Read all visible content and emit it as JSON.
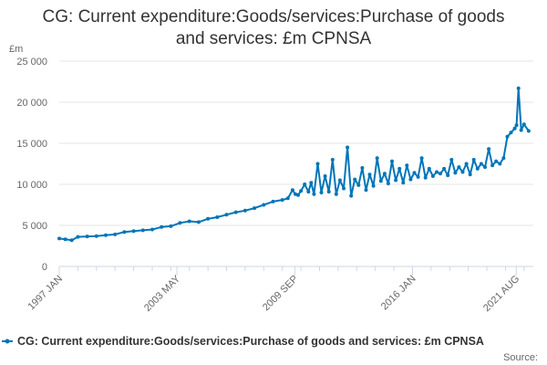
{
  "chart_data": {
    "type": "line",
    "title_lines": [
      "CG: Current expenditure:Goods/services:Purchase of goods",
      "and services: £m CPNSA"
    ],
    "ylabel": "£m",
    "ylim": [
      0,
      25000
    ],
    "yticks": [
      {
        "value": 0,
        "label": "0"
      },
      {
        "value": 5000,
        "label": "5 000"
      },
      {
        "value": 10000,
        "label": "10 000"
      },
      {
        "value": 15000,
        "label": "15 000"
      },
      {
        "value": 20000,
        "label": "20 000"
      },
      {
        "value": 25000,
        "label": "25 000"
      }
    ],
    "xlim": [
      1997.0,
      2022.5
    ],
    "xticks": [
      {
        "value": 1997.0,
        "label": "1997 JAN"
      },
      {
        "value": 2003.33,
        "label": "2003 MAY"
      },
      {
        "value": 2009.67,
        "label": "2009 SEP"
      },
      {
        "value": 2016.0,
        "label": "2016 JAN"
      },
      {
        "value": 2021.58,
        "label": "2021 AUG"
      }
    ],
    "grid": true,
    "series": [
      {
        "name": "CG: Current expenditure:Goods/services:Purchase of goods and services: £m CPNSA",
        "color": "#0075b8",
        "x": [
          1997.0,
          1997.33,
          1997.67,
          1998.0,
          1998.5,
          1999.0,
          1999.5,
          2000.0,
          2000.5,
          2001.0,
          2001.5,
          2002.0,
          2002.5,
          2003.0,
          2003.5,
          2004.0,
          2004.5,
          2005.0,
          2005.5,
          2006.0,
          2006.5,
          2007.0,
          2007.5,
          2008.0,
          2008.5,
          2009.0,
          2009.3,
          2009.55,
          2009.7,
          2009.85,
          2010.0,
          2010.2,
          2010.4,
          2010.55,
          2010.7,
          2010.9,
          2011.1,
          2011.3,
          2011.5,
          2011.7,
          2011.9,
          2012.1,
          2012.3,
          2012.5,
          2012.7,
          2012.9,
          2013.1,
          2013.3,
          2013.5,
          2013.7,
          2013.9,
          2014.1,
          2014.3,
          2014.5,
          2014.7,
          2014.9,
          2015.1,
          2015.3,
          2015.5,
          2015.7,
          2015.9,
          2016.1,
          2016.3,
          2016.5,
          2016.7,
          2016.9,
          2017.1,
          2017.3,
          2017.5,
          2017.7,
          2017.9,
          2018.1,
          2018.3,
          2018.5,
          2018.7,
          2018.9,
          2019.1,
          2019.3,
          2019.5,
          2019.7,
          2019.9,
          2020.1,
          2020.3,
          2020.5,
          2020.7,
          2020.9,
          2021.1,
          2021.3,
          2021.5,
          2021.6,
          2021.7,
          2021.85,
          2022.0,
          2022.25
        ],
        "values": [
          3400,
          3300,
          3200,
          3600,
          3650,
          3700,
          3800,
          3900,
          4200,
          4300,
          4400,
          4500,
          4800,
          4900,
          5300,
          5500,
          5400,
          5800,
          6000,
          6300,
          6600,
          6800,
          7100,
          7500,
          7900,
          8100,
          8300,
          9300,
          8800,
          8700,
          9200,
          10000,
          9100,
          10200,
          8800,
          12500,
          9000,
          11000,
          9100,
          13000,
          8800,
          10500,
          9500,
          14500,
          8600,
          10600,
          9900,
          12000,
          9300,
          11200,
          9800,
          13200,
          10400,
          11300,
          10100,
          12800,
          10500,
          11900,
          10200,
          12300,
          10600,
          11400,
          10900,
          13200,
          10800,
          11900,
          11000,
          11500,
          11300,
          11900,
          11100,
          13000,
          11400,
          12100,
          11500,
          12500,
          11200,
          13000,
          11900,
          12500,
          12100,
          14300,
          12300,
          12800,
          12500,
          13200,
          15800,
          16300,
          16800,
          17200,
          21700,
          16600,
          17300,
          16500
        ]
      }
    ]
  },
  "legend": {
    "label": "CG: Current expenditure:Goods/services:Purchase of goods and services: £m CPNSA"
  },
  "credits": {
    "label": "Source:"
  }
}
